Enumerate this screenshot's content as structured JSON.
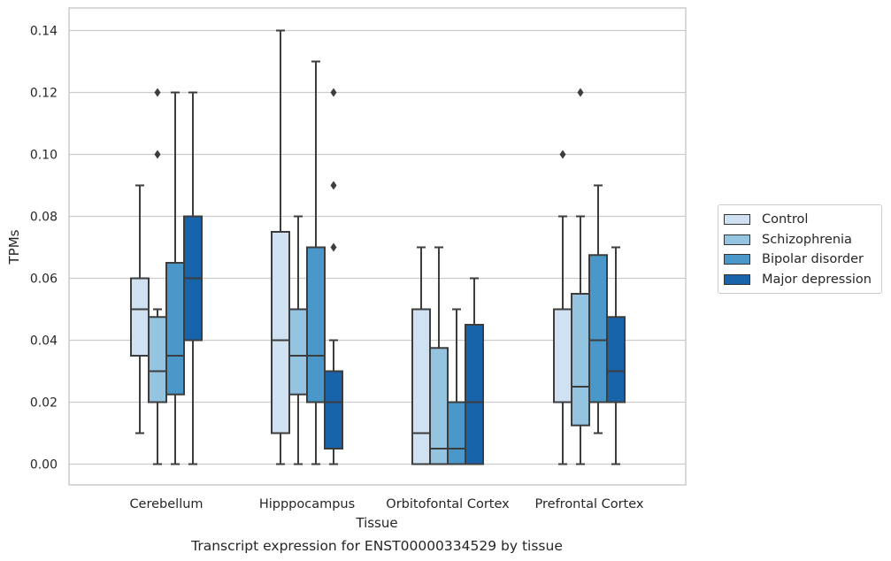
{
  "chart_data": {
    "type": "box",
    "title": "",
    "caption": "Transcript expression for ENST00000334529 by tissue",
    "xlabel": "Tissue",
    "ylabel": "TPMs",
    "ylim": [
      -0.007,
      0.147
    ],
    "yticks": [
      "0.00",
      "0.02",
      "0.04",
      "0.06",
      "0.08",
      "0.10",
      "0.12",
      "0.14"
    ],
    "grid": "horizontal",
    "legend_position": "right",
    "categories": [
      "Cerebellum",
      "Hipppocampus",
      "Orbitofontal Cortex",
      "Prefrontal Cortex"
    ],
    "series": [
      {
        "name": "Control",
        "color": "#d0e1f2",
        "boxes": [
          {
            "whislo": 0.01,
            "q1": 0.035,
            "med": 0.05,
            "q3": 0.06,
            "whishi": 0.09,
            "fliers": []
          },
          {
            "whislo": 0.0,
            "q1": 0.01,
            "med": 0.04,
            "q3": 0.075,
            "whishi": 0.14,
            "fliers": []
          },
          {
            "whislo": 0.0,
            "q1": 0.0,
            "med": 0.01,
            "q3": 0.05,
            "whishi": 0.07,
            "fliers": []
          },
          {
            "whislo": 0.0,
            "q1": 0.02,
            "med": 0.02,
            "q3": 0.05,
            "whishi": 0.08,
            "fliers": [
              0.1
            ]
          }
        ]
      },
      {
        "name": "Schizophrenia",
        "color": "#94c4df",
        "boxes": [
          {
            "whislo": 0.0,
            "q1": 0.02,
            "med": 0.03,
            "q3": 0.0475,
            "whishi": 0.05,
            "fliers": [
              0.1,
              0.12
            ]
          },
          {
            "whislo": 0.0,
            "q1": 0.0225,
            "med": 0.035,
            "q3": 0.05,
            "whishi": 0.08,
            "fliers": []
          },
          {
            "whislo": 0.0,
            "q1": 0.0,
            "med": 0.005,
            "q3": 0.0375,
            "whishi": 0.07,
            "fliers": []
          },
          {
            "whislo": 0.0,
            "q1": 0.0125,
            "med": 0.025,
            "q3": 0.055,
            "whishi": 0.08,
            "fliers": [
              0.12
            ]
          }
        ]
      },
      {
        "name": "Bipolar disorder",
        "color": "#4a98c9",
        "boxes": [
          {
            "whislo": 0.0,
            "q1": 0.0225,
            "med": 0.035,
            "q3": 0.065,
            "whishi": 0.12,
            "fliers": []
          },
          {
            "whislo": 0.0,
            "q1": 0.02,
            "med": 0.035,
            "q3": 0.07,
            "whishi": 0.13,
            "fliers": []
          },
          {
            "whislo": 0.0,
            "q1": 0.0,
            "med": 0.005,
            "q3": 0.02,
            "whishi": 0.05,
            "fliers": []
          },
          {
            "whislo": 0.01,
            "q1": 0.02,
            "med": 0.04,
            "q3": 0.0675,
            "whishi": 0.09,
            "fliers": []
          }
        ]
      },
      {
        "name": "Major depression",
        "color": "#1764ab",
        "boxes": [
          {
            "whislo": 0.0,
            "q1": 0.04,
            "med": 0.06,
            "q3": 0.08,
            "whishi": 0.12,
            "fliers": []
          },
          {
            "whislo": 0.0,
            "q1": 0.005,
            "med": 0.02,
            "q3": 0.03,
            "whishi": 0.04,
            "fliers": [
              0.07,
              0.09,
              0.12
            ]
          },
          {
            "whislo": 0.0,
            "q1": 0.0,
            "med": 0.02,
            "q3": 0.045,
            "whishi": 0.06,
            "fliers": []
          },
          {
            "whislo": 0.0,
            "q1": 0.02,
            "med": 0.03,
            "q3": 0.0475,
            "whishi": 0.07,
            "fliers": []
          }
        ]
      }
    ]
  }
}
